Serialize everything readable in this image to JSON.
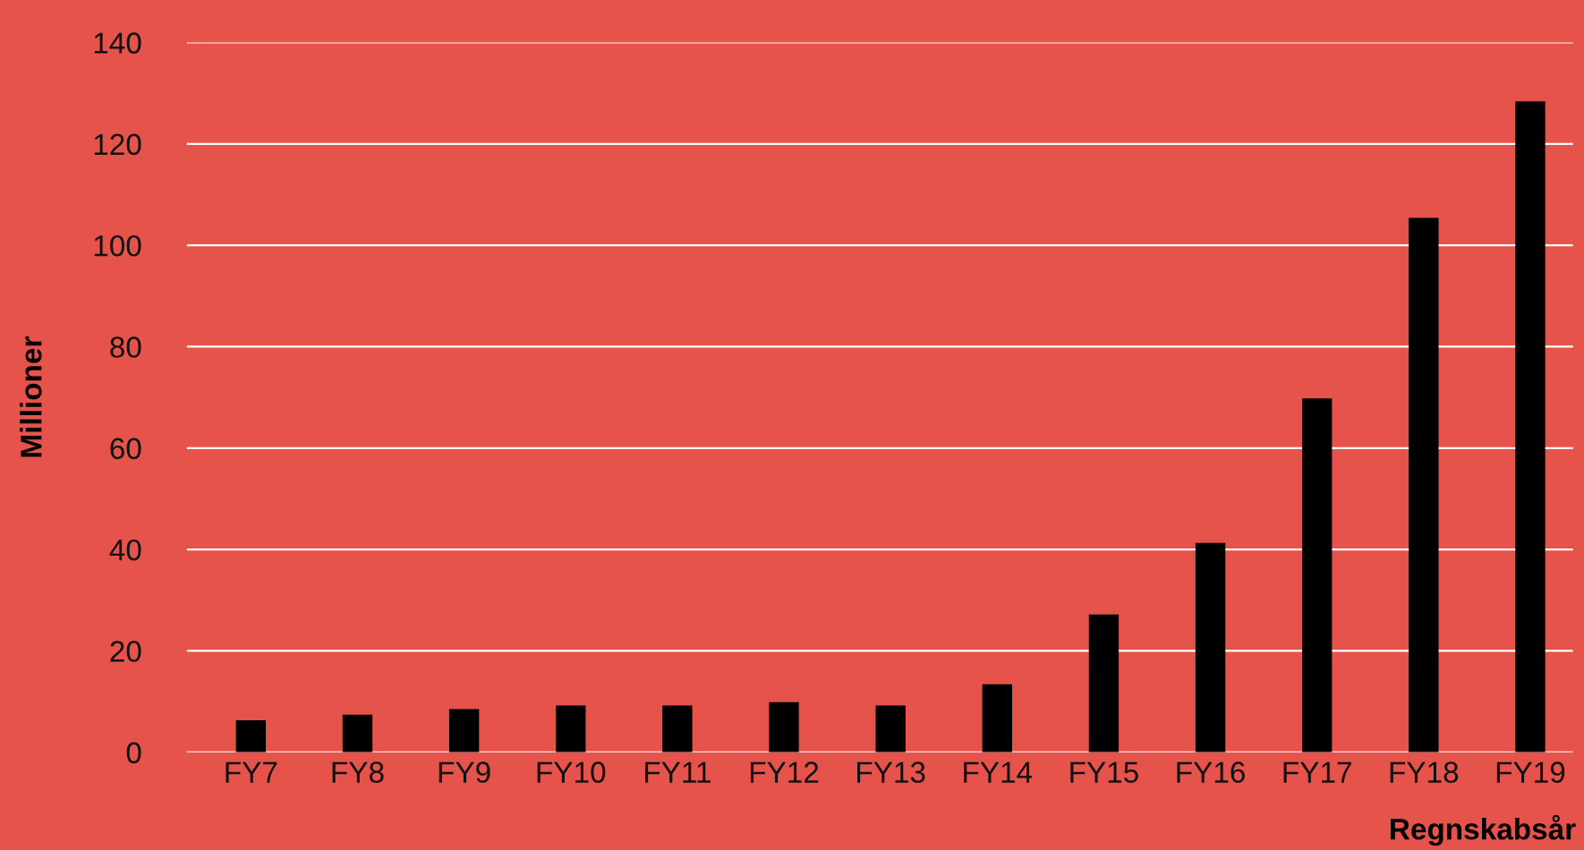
{
  "chart_data": {
    "type": "bar",
    "xlabel": "Regnskabsår",
    "ylabel": "Millioner",
    "categories": [
      "FY7",
      "FY8",
      "FY9",
      "FY10",
      "FY11",
      "FY12",
      "FY13",
      "FY14",
      "FY15",
      "FY16",
      "FY17",
      "FY18",
      "FY19"
    ],
    "values": [
      6.3,
      7.4,
      8.5,
      9.2,
      9.2,
      9.9,
      9.2,
      13.4,
      27.2,
      41.3,
      69.8,
      105.4,
      128.4
    ],
    "color": "#000000",
    "ylim": [
      0,
      140
    ],
    "yticks": [
      0,
      20,
      40,
      60,
      80,
      100,
      120,
      140
    ],
    "grid": "y"
  }
}
